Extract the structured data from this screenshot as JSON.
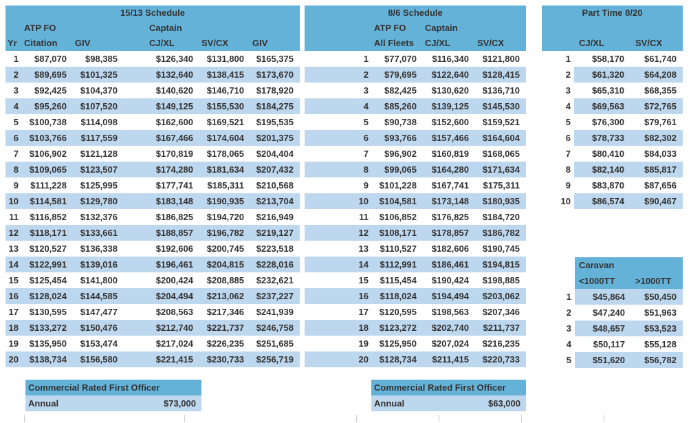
{
  "colors": {
    "header": "#65B2D9",
    "stripe": "#BDD7EE",
    "text": "#333333"
  },
  "schedule_15_13": {
    "title": "15/13 Schedule",
    "group_fo": "ATP FO",
    "group_captain": "Captain",
    "columns": [
      "Yr",
      "Citation",
      "GIV",
      "CJ/XL",
      "SV/CX",
      "GIV"
    ],
    "rows": [
      [
        "1",
        "$87,070",
        "$98,385",
        "$126,340",
        "$131,800",
        "$165,375"
      ],
      [
        "2",
        "$89,695",
        "$101,325",
        "$132,640",
        "$138,415",
        "$173,670"
      ],
      [
        "3",
        "$92,425",
        "$104,370",
        "$140,620",
        "$146,710",
        "$178,920"
      ],
      [
        "4",
        "$95,260",
        "$107,520",
        "$149,125",
        "$155,530",
        "$184,275"
      ],
      [
        "5",
        "$100,738",
        "$114,098",
        "$162,600",
        "$169,521",
        "$195,535"
      ],
      [
        "6",
        "$103,766",
        "$117,559",
        "$167,466",
        "$174,604",
        "$201,375"
      ],
      [
        "7",
        "$106,902",
        "$121,128",
        "$170,819",
        "$178,065",
        "$204,404"
      ],
      [
        "8",
        "$109,065",
        "$123,507",
        "$174,280",
        "$181,634",
        "$207,432"
      ],
      [
        "9",
        "$111,228",
        "$125,995",
        "$177,741",
        "$185,311",
        "$210,568"
      ],
      [
        "10",
        "$114,581",
        "$129,780",
        "$183,148",
        "$190,935",
        "$213,704"
      ],
      [
        "11",
        "$116,852",
        "$132,376",
        "$186,825",
        "$194,720",
        "$216,949"
      ],
      [
        "12",
        "$118,171",
        "$133,661",
        "$188,857",
        "$196,782",
        "$219,127"
      ],
      [
        "13",
        "$120,527",
        "$136,338",
        "$192,606",
        "$200,745",
        "$223,518"
      ],
      [
        "14",
        "$122,991",
        "$139,016",
        "$196,461",
        "$204,815",
        "$228,016"
      ],
      [
        "15",
        "$125,454",
        "$141,800",
        "$200,424",
        "$208,885",
        "$232,621"
      ],
      [
        "16",
        "$128,024",
        "$144,585",
        "$204,494",
        "$213,062",
        "$237,227"
      ],
      [
        "17",
        "$130,595",
        "$147,477",
        "$208,563",
        "$217,346",
        "$241,939"
      ],
      [
        "18",
        "$133,272",
        "$150,476",
        "$212,740",
        "$221,737",
        "$246,758"
      ],
      [
        "19",
        "$135,950",
        "$153,474",
        "$217,024",
        "$226,235",
        "$251,685"
      ],
      [
        "20",
        "$138,734",
        "$156,580",
        "$221,415",
        "$230,733",
        "$256,719"
      ]
    ]
  },
  "schedule_8_6": {
    "title": "8/6 Schedule",
    "group_fo": "ATP FO",
    "group_captain": "Captain",
    "columns": [
      "All Fleets",
      "CJ/XL",
      "SV/CX"
    ],
    "rows": [
      [
        "1",
        "$77,070",
        "$116,340",
        "$121,800"
      ],
      [
        "2",
        "$79,695",
        "$122,640",
        "$128,415"
      ],
      [
        "3",
        "$82,425",
        "$130,620",
        "$136,710"
      ],
      [
        "4",
        "$85,260",
        "$139,125",
        "$145,530"
      ],
      [
        "5",
        "$90,738",
        "$152,600",
        "$159,521"
      ],
      [
        "6",
        "$93,766",
        "$157,466",
        "$164,604"
      ],
      [
        "7",
        "$96,902",
        "$160,819",
        "$168,065"
      ],
      [
        "8",
        "$99,065",
        "$164,280",
        "$171,634"
      ],
      [
        "9",
        "$101,228",
        "$167,741",
        "$175,311"
      ],
      [
        "10",
        "$104,581",
        "$173,148",
        "$180,935"
      ],
      [
        "11",
        "$106,852",
        "$176,825",
        "$184,720"
      ],
      [
        "12",
        "$108,171",
        "$178,857",
        "$186,782"
      ],
      [
        "13",
        "$110,527",
        "$182,606",
        "$190,745"
      ],
      [
        "14",
        "$112,991",
        "$186,461",
        "$194,815"
      ],
      [
        "15",
        "$115,454",
        "$190,424",
        "$198,885"
      ],
      [
        "16",
        "$118,024",
        "$194,494",
        "$203,062"
      ],
      [
        "17",
        "$120,595",
        "$198,563",
        "$207,346"
      ],
      [
        "18",
        "$123,272",
        "$202,740",
        "$211,737"
      ],
      [
        "19",
        "$125,950",
        "$207,024",
        "$216,235"
      ],
      [
        "20",
        "$128,734",
        "$211,415",
        "$220,733"
      ]
    ]
  },
  "part_time": {
    "title": "Part Time 8/20",
    "columns": [
      "CJ/XL",
      "SV/CX"
    ],
    "rows": [
      [
        "1",
        "$58,170",
        "$61,740"
      ],
      [
        "2",
        "$61,320",
        "$64,208"
      ],
      [
        "3",
        "$65,310",
        "$68,355"
      ],
      [
        "4",
        "$69,563",
        "$72,765"
      ],
      [
        "5",
        "$76,300",
        "$79,761"
      ],
      [
        "6",
        "$78,733",
        "$82,302"
      ],
      [
        "7",
        "$80,410",
        "$84,033"
      ],
      [
        "8",
        "$82,140",
        "$85,817"
      ],
      [
        "9",
        "$83,870",
        "$87,656"
      ],
      [
        "10",
        "$86,574",
        "$90,467"
      ]
    ]
  },
  "caravan": {
    "title": "Caravan",
    "columns": [
      "<1000TT",
      ">1000TT"
    ],
    "rows": [
      [
        "1",
        "$45,864",
        "$50,450"
      ],
      [
        "2",
        "$47,240",
        "$51,963"
      ],
      [
        "3",
        "$48,657",
        "$53,523"
      ],
      [
        "4",
        "$50,117",
        "$55,128"
      ],
      [
        "5",
        "$51,620",
        "$56,782"
      ]
    ]
  },
  "commercial_fo_left": {
    "title": "Commercial Rated First Officer",
    "label": "Annual",
    "value": "$73,000"
  },
  "commercial_fo_right": {
    "title": "Commercial Rated First Officer",
    "label": "Annual",
    "value": "$63,000"
  }
}
